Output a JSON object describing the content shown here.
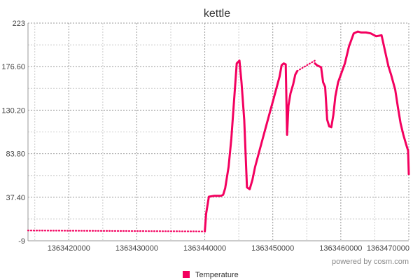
{
  "chart_data": {
    "type": "line",
    "title": "kettle",
    "xlabel": "",
    "ylabel": "",
    "credit": "powered by cosm.com",
    "xlim": [
      1363414000,
      1363470000
    ],
    "ylim": [
      -9,
      223
    ],
    "x_ticks": [
      1363420000,
      1363430000,
      1363440000,
      1363450000,
      1363460000,
      1363470000
    ],
    "x_tick_labels": [
      "1363420000",
      "1363430000",
      "1363440000",
      "1363450000",
      "1363460000",
      "1363470000"
    ],
    "y_ticks": [
      -9,
      37.4,
      83.8,
      130.2,
      176.6,
      223
    ],
    "y_tick_labels": [
      "-9",
      "37.40",
      "83.80",
      "130.20",
      "176.60",
      "223"
    ],
    "grid": true,
    "legend_position": "bottom-center",
    "series": [
      {
        "name": "Temperature",
        "color": "#f3005f",
        "segments": [
          {
            "style": "dotted",
            "x": [
              1363414000,
              1363440000
            ],
            "y": [
              2,
              1
            ]
          },
          {
            "style": "solid",
            "x": [
              1363440000,
              1363440200,
              1363440600,
              1363441400,
              1363442400,
              1363442700,
              1363443000,
              1363443500,
              1363443900,
              1363444400,
              1363444700,
              1363445100,
              1363445400,
              1363445800,
              1363446200,
              1363446600,
              1363447000,
              1363447400,
              1363448300,
              1363449200,
              1363450100,
              1363451000,
              1363451300,
              1363451600,
              1363451900,
              1363452100,
              1363452300,
              1363452600,
              1363453000,
              1363453300,
              1363453600
            ],
            "y": [
              1,
              20,
              38,
              39,
              39,
              40,
              47,
              70,
              100,
              150,
              180,
              183,
              160,
              120,
              48,
              46,
              56,
              70,
              94,
              118,
              142,
              166,
              178,
              180,
              179,
              104,
              135,
              148,
              158,
              168,
              172
            ]
          },
          {
            "style": "dotted",
            "x": [
              1363453600,
              1363455000,
              1363456200
            ],
            "y": [
              172,
              178,
              183
            ]
          },
          {
            "style": "solid",
            "x": [
              1363456200,
              1363456500,
              1363457100,
              1363457400,
              1363457700,
              1363458000,
              1363458300,
              1363458600,
              1363458900,
              1363459200,
              1363459600,
              1363460000,
              1363460600,
              1363461200,
              1363461900,
              1363462500,
              1363463000,
              1363463700,
              1363464400,
              1363465200,
              1363466000,
              1363466600,
              1363467000,
              1363467400,
              1363468000,
              1363468400,
              1363468800,
              1363469200,
              1363469600,
              1363469900,
              1363470000
            ],
            "y": [
              180,
              178,
              176,
              160,
              155,
              120,
              113,
              112,
              125,
              145,
              160,
              168,
              180,
              198,
              212,
              214,
              213,
              213,
              212,
              209,
              210,
              190,
              177,
              168,
              152,
              133,
              116,
              104,
              94,
              87,
              62
            ]
          }
        ]
      }
    ]
  }
}
